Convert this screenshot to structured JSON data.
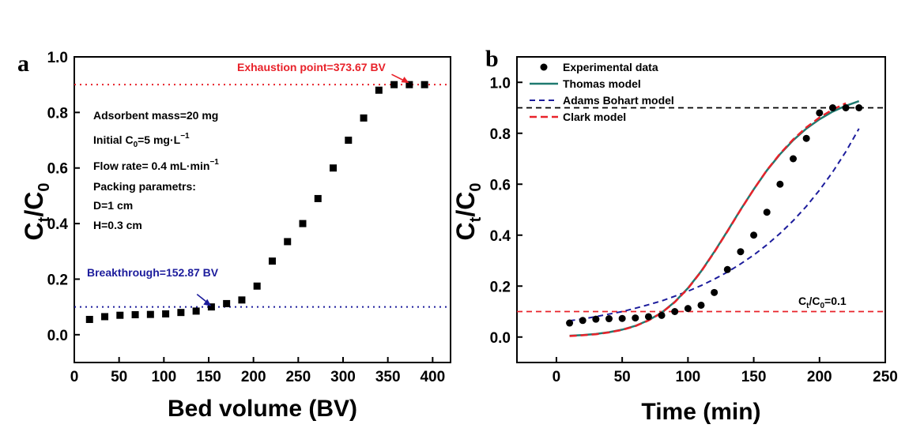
{
  "colors": {
    "black": "#000000",
    "red": "#e8222a",
    "blue": "#1c1c9c",
    "teal": "#1f7a70"
  },
  "chart_data": [
    {
      "panel_label": "a",
      "type": "scatter",
      "xlabel": "Bed volume (BV)",
      "ylabel": {
        "main": "C",
        "sub1": "t",
        "slash": "/C",
        "sub2": "0"
      },
      "xlim": [
        0,
        420
      ],
      "ylim": [
        -0.1,
        1.0
      ],
      "xticks": [
        0,
        50,
        100,
        150,
        200,
        250,
        300,
        350,
        400
      ],
      "yticks": [
        0.0,
        0.2,
        0.4,
        0.6,
        0.8,
        1.0
      ],
      "ytick_labels": [
        "0.0",
        "0.2",
        "0.4",
        "0.6",
        "0.8",
        "1.0"
      ],
      "series": [
        {
          "name": "data",
          "marker": "square",
          "x": [
            17,
            34,
            51,
            68,
            85,
            102,
            119,
            136,
            153,
            170,
            187,
            204,
            221,
            238,
            255,
            272,
            289,
            306,
            323,
            340,
            357,
            374,
            391
          ],
          "y": [
            0.055,
            0.065,
            0.07,
            0.072,
            0.073,
            0.075,
            0.08,
            0.085,
            0.1,
            0.112,
            0.125,
            0.175,
            0.265,
            0.335,
            0.4,
            0.49,
            0.6,
            0.7,
            0.78,
            0.88,
            0.9,
            0.9,
            0.9
          ]
        }
      ],
      "hlines": [
        {
          "y": 0.9,
          "color": "#e8222a",
          "style": "dotted"
        },
        {
          "y": 0.1,
          "color": "#1c1c9c",
          "style": "dotted"
        }
      ],
      "annotations": {
        "exhaustion": "Exhaustion point=373.67 BV",
        "exhaustion_x": 373.67,
        "breakthrough": "Breakthrough=152.87 BV",
        "breakthrough_x": 152.87,
        "info": {
          "line1": "Adsorbent mass=20 mg",
          "line2_a": "Initial C",
          "line2_sub": "0",
          "line2_b": "=5 mg·L",
          "line2_sup": "−1",
          "line3_a": "Flow rate= 0.4 mL·min",
          "line3_sup": "−1",
          "line4": "Packing parametrs:",
          "line5": "D=1 cm",
          "line6": "H=0.3 cm"
        }
      }
    },
    {
      "panel_label": "b",
      "type": "line",
      "xlabel": "Time (min)",
      "ylabel": {
        "main": "C",
        "sub1": "t",
        "slash": "/C",
        "sub2": "0"
      },
      "xlim": [
        -30,
        250
      ],
      "ylim": [
        -0.1,
        1.1
      ],
      "xticks": [
        0,
        50,
        100,
        150,
        200,
        250
      ],
      "yticks": [
        0.0,
        0.2,
        0.4,
        0.6,
        0.8,
        1.0
      ],
      "ytick_labels": [
        "0.0",
        "0.2",
        "0.4",
        "0.6",
        "0.8",
        "1.0"
      ],
      "experimental": {
        "name": "Experimental data",
        "x": [
          10,
          20,
          30,
          40,
          50,
          60,
          70,
          80,
          90,
          100,
          110,
          120,
          130,
          140,
          150,
          160,
          170,
          180,
          190,
          200,
          210,
          220,
          230
        ],
        "y": [
          0.055,
          0.065,
          0.07,
          0.072,
          0.073,
          0.075,
          0.08,
          0.085,
          0.1,
          0.112,
          0.125,
          0.175,
          0.265,
          0.335,
          0.4,
          0.49,
          0.6,
          0.7,
          0.78,
          0.88,
          0.9,
          0.9,
          0.9
        ]
      },
      "models": [
        {
          "name": "Thomas model",
          "color": "#1f7a70",
          "style": "solid",
          "x": [
            10,
            20,
            30,
            40,
            50,
            60,
            70,
            80,
            90,
            100,
            110,
            120,
            130,
            140,
            150,
            160,
            170,
            180,
            190,
            200,
            210,
            220,
            230
          ],
          "y": [
            0.005,
            0.008,
            0.012,
            0.019,
            0.029,
            0.044,
            0.066,
            0.096,
            0.138,
            0.192,
            0.258,
            0.334,
            0.416,
            0.5,
            0.58,
            0.654,
            0.718,
            0.773,
            0.818,
            0.855,
            0.885,
            0.908,
            0.926
          ]
        },
        {
          "name": "Adams Bohart model",
          "color": "#1c1c9c",
          "style": "dashed",
          "x": [
            10,
            20,
            30,
            40,
            50,
            60,
            70,
            80,
            90,
            100,
            110,
            120,
            130,
            140,
            150,
            160,
            170,
            180,
            190,
            200,
            210,
            220,
            230
          ],
          "y": [
            0.064,
            0.071,
            0.08,
            0.09,
            0.1,
            0.113,
            0.127,
            0.142,
            0.16,
            0.18,
            0.202,
            0.227,
            0.255,
            0.287,
            0.322,
            0.362,
            0.407,
            0.457,
            0.513,
            0.577,
            0.648,
            0.728,
            0.818
          ]
        },
        {
          "name": "Clark model",
          "color": "#e8222a",
          "style": "dashed",
          "x": [
            10,
            20,
            30,
            40,
            50,
            60,
            70,
            80,
            90,
            100,
            110,
            120,
            130,
            140,
            150,
            160,
            170,
            180,
            190,
            200,
            210,
            220
          ],
          "y": [
            0.004,
            0.007,
            0.011,
            0.018,
            0.028,
            0.043,
            0.065,
            0.095,
            0.137,
            0.191,
            0.257,
            0.333,
            0.415,
            0.499,
            0.58,
            0.655,
            0.72,
            0.776,
            0.823,
            0.862,
            0.893,
            0.918
          ]
        }
      ],
      "hlines": [
        {
          "y": 0.9,
          "color": "#000000",
          "style": "dashed"
        },
        {
          "y": 0.1,
          "color": "#e8222a",
          "style": "dashed"
        }
      ],
      "annotations": {
        "ct_label": {
          "a": "C",
          "sub1": "t",
          "b": "/C",
          "sub2": "0",
          "c": "=0.1"
        }
      }
    }
  ]
}
